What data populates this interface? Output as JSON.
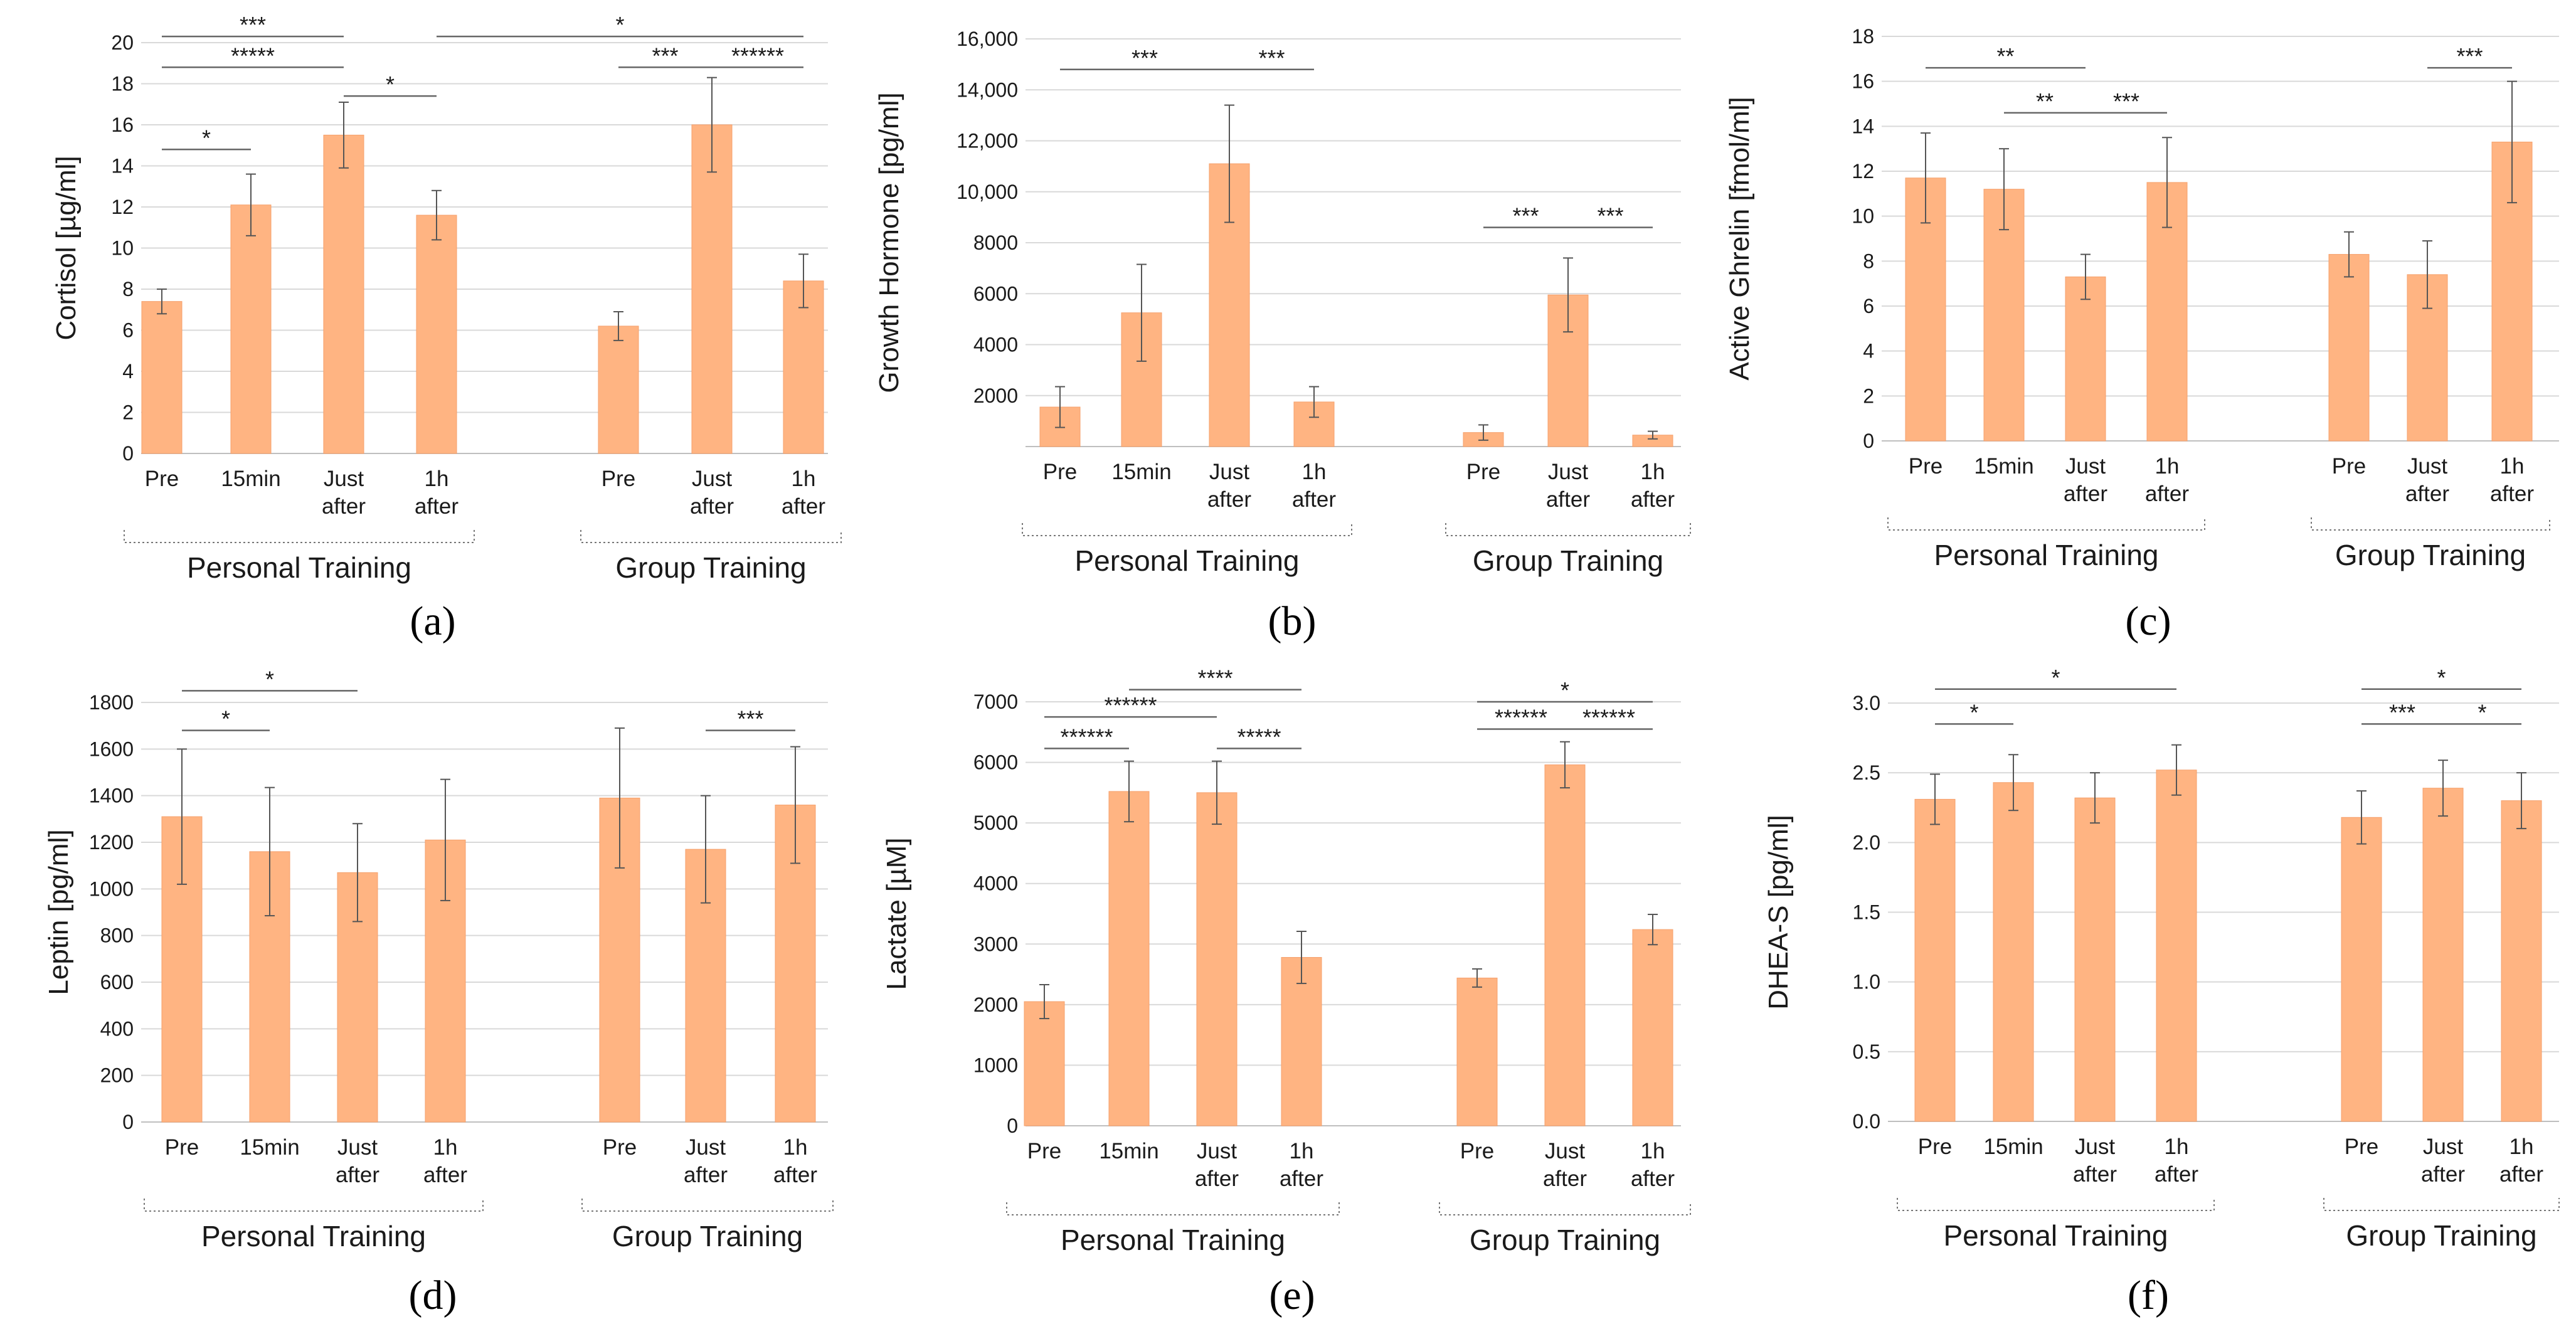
{
  "figure": {
    "bar_color": "#FFB482",
    "bar_edge_color": "#F5A06C",
    "grid_color": "#D9D9D9",
    "text_color": "#1a1a1a"
  },
  "chart_data": [
    {
      "type": "bar",
      "panel_label": "(a)",
      "ylabel": "Cortisol [µg/ml]",
      "ylim": [
        0,
        20
      ],
      "yticks": [
        "0",
        "2",
        "4",
        "6",
        "8",
        "10",
        "12",
        "14",
        "16",
        "18",
        "20"
      ],
      "groups": [
        {
          "name": "Personal Training",
          "categories": [
            "Pre",
            "15min",
            "Just after",
            "1h after"
          ],
          "values": [
            7.4,
            12.1,
            15.5,
            11.6
          ],
          "errors": [
            0.6,
            1.5,
            1.6,
            1.2
          ]
        },
        {
          "name": "Group Training",
          "categories": [
            "Pre",
            "Just after",
            "1h after"
          ],
          "values": [
            6.2,
            16.0,
            8.4
          ],
          "errors": [
            0.7,
            2.3,
            1.3
          ]
        }
      ],
      "brackets": [
        {
          "g1": 0,
          "i1": 0,
          "g2": 0,
          "i2": 2,
          "y": 20.3,
          "label": "***"
        },
        {
          "g1": 0,
          "i1": 3,
          "g2": 1,
          "i2": 2,
          "y": 20.3,
          "label": "*"
        },
        {
          "g1": 0,
          "i1": 0,
          "g2": 0,
          "i2": 2,
          "y": 18.8,
          "label": "*****"
        },
        {
          "g1": 0,
          "i1": 0,
          "g2": 0,
          "i2": 1,
          "y": 14.8,
          "label": "*"
        },
        {
          "g1": 0,
          "i1": 2,
          "g2": 0,
          "i2": 3,
          "y": 17.4,
          "label": "*"
        },
        {
          "g1": 1,
          "i1": 0,
          "g2": 1,
          "i2": 1,
          "y": 18.8,
          "label": "***"
        },
        {
          "g1": 1,
          "i1": 1,
          "g2": 1,
          "i2": 2,
          "y": 18.8,
          "label": "******"
        }
      ]
    },
    {
      "type": "bar",
      "panel_label": "(b)",
      "ylabel": "Growth Hormone [pg/ml]",
      "ylim": [
        0,
        16000
      ],
      "yticks": [
        "",
        "2000",
        "4000",
        "6000",
        "8000",
        "10,000",
        "12,000",
        "14,000",
        "16,000"
      ],
      "groups": [
        {
          "name": "Personal Training",
          "categories": [
            "Pre",
            "15min",
            "Just after",
            "1h after"
          ],
          "values": [
            1550,
            5250,
            11100,
            1750
          ],
          "errors": [
            800,
            1900,
            2300,
            600
          ]
        },
        {
          "name": "Group Training",
          "categories": [
            "Pre",
            "Just after",
            "1h after"
          ],
          "values": [
            550,
            5950,
            450
          ],
          "errors": [
            300,
            1450,
            150
          ]
        }
      ],
      "brackets": [
        {
          "g1": 0,
          "i1": 0,
          "g2": 0,
          "i2": 2,
          "y": 14800,
          "label": "***"
        },
        {
          "g1": 0,
          "i1": 2,
          "g2": 0,
          "i2": 3,
          "y": 14800,
          "label": "***"
        },
        {
          "g1": 1,
          "i1": 0,
          "g2": 1,
          "i2": 1,
          "y": 8600,
          "label": "***"
        },
        {
          "g1": 1,
          "i1": 1,
          "g2": 1,
          "i2": 2,
          "y": 8600,
          "label": "***"
        }
      ]
    },
    {
      "type": "bar",
      "panel_label": "(c)",
      "ylabel": "Active Ghrelin [fmol/ml]",
      "ylim": [
        0,
        18
      ],
      "yticks": [
        "0",
        "2",
        "4",
        "6",
        "8",
        "10",
        "12",
        "14",
        "16",
        "18"
      ],
      "groups": [
        {
          "name": "Personal Training",
          "categories": [
            "Pre",
            "15min",
            "Just after",
            "1h after"
          ],
          "values": [
            11.7,
            11.2,
            7.3,
            11.5
          ],
          "errors": [
            2.0,
            1.8,
            1.0,
            2.0
          ]
        },
        {
          "name": "Group Training",
          "categories": [
            "Pre",
            "Just after",
            "1h after"
          ],
          "values": [
            8.3,
            7.4,
            13.3
          ],
          "errors": [
            1.0,
            1.5,
            2.7
          ]
        }
      ],
      "brackets": [
        {
          "g1": 0,
          "i1": 0,
          "g2": 0,
          "i2": 2,
          "y": 16.6,
          "label": "**"
        },
        {
          "g1": 0,
          "i1": 1,
          "g2": 0,
          "i2": 2,
          "y": 14.6,
          "label": "**"
        },
        {
          "g1": 0,
          "i1": 2,
          "g2": 0,
          "i2": 3,
          "y": 14.6,
          "label": "***"
        },
        {
          "g1": 1,
          "i1": 1,
          "g2": 1,
          "i2": 2,
          "y": 16.6,
          "label": "***"
        }
      ]
    },
    {
      "type": "bar",
      "panel_label": "(d)",
      "ylabel": "Leptin [pg/ml]",
      "ylim": [
        0,
        1800
      ],
      "yticks": [
        "0",
        "200",
        "400",
        "600",
        "800",
        "1000",
        "1200",
        "1400",
        "1600",
        "1800"
      ],
      "groups": [
        {
          "name": "Personal Training",
          "categories": [
            "Pre",
            "15min",
            "Just after",
            "1h after"
          ],
          "values": [
            1310,
            1160,
            1070,
            1210
          ],
          "errors": [
            290,
            275,
            210,
            260
          ]
        },
        {
          "name": "Group Training",
          "categories": [
            "Pre",
            "Just after",
            "1h after"
          ],
          "values": [
            1390,
            1170,
            1360
          ],
          "errors": [
            300,
            230,
            250
          ]
        }
      ],
      "brackets": [
        {
          "g1": 0,
          "i1": 0,
          "g2": 0,
          "i2": 2,
          "y": 1850,
          "label": "*"
        },
        {
          "g1": 0,
          "i1": 0,
          "g2": 0,
          "i2": 1,
          "y": 1680,
          "label": "*"
        },
        {
          "g1": 1,
          "i1": 1,
          "g2": 1,
          "i2": 2,
          "y": 1680,
          "label": "***"
        }
      ]
    },
    {
      "type": "bar",
      "panel_label": "(e)",
      "ylabel": "Lactate [µM]",
      "ylim": [
        0,
        7000
      ],
      "yticks": [
        "0",
        "1000",
        "2000",
        "3000",
        "4000",
        "5000",
        "6000",
        "7000"
      ],
      "groups": [
        {
          "name": "Personal Training",
          "categories": [
            "Pre",
            "15min",
            "Just after",
            "1h after"
          ],
          "values": [
            2050,
            5520,
            5500,
            2780
          ],
          "errors": [
            280,
            500,
            520,
            430
          ]
        },
        {
          "name": "Group Training",
          "categories": [
            "Pre",
            "Just after",
            "1h after"
          ],
          "values": [
            2440,
            5960,
            3240
          ],
          "errors": [
            150,
            380,
            250
          ]
        }
      ],
      "brackets": [
        {
          "g1": 0,
          "i1": 1,
          "g2": 0,
          "i2": 3,
          "y": 7200,
          "label": "****"
        },
        {
          "g1": 0,
          "i1": 0,
          "g2": 0,
          "i2": 2,
          "y": 6750,
          "label": "******"
        },
        {
          "g1": 0,
          "i1": 0,
          "g2": 0,
          "i2": 1,
          "y": 6230,
          "label": "******"
        },
        {
          "g1": 0,
          "i1": 2,
          "g2": 0,
          "i2": 3,
          "y": 6230,
          "label": "*****"
        },
        {
          "g1": 1,
          "i1": 0,
          "g2": 1,
          "i2": 2,
          "y": 7000,
          "label": "*"
        },
        {
          "g1": 1,
          "i1": 0,
          "g2": 1,
          "i2": 1,
          "y": 6550,
          "label": "******"
        },
        {
          "g1": 1,
          "i1": 1,
          "g2": 1,
          "i2": 2,
          "y": 6550,
          "label": "******"
        }
      ]
    },
    {
      "type": "bar",
      "panel_label": "(f)",
      "ylabel": "DHEA-S [pg/ml]",
      "ylim": [
        0,
        3.0
      ],
      "yticks": [
        "0.0",
        "0.5",
        "1.0",
        "1.5",
        "2.0",
        "2.5",
        "3.0"
      ],
      "groups": [
        {
          "name": "Personal Training",
          "categories": [
            "Pre",
            "15min",
            "Just after",
            "1h after"
          ],
          "values": [
            2.31,
            2.43,
            2.32,
            2.52
          ],
          "errors": [
            0.18,
            0.2,
            0.18,
            0.18
          ]
        },
        {
          "name": "Group Training",
          "categories": [
            "Pre",
            "Just after",
            "1h after"
          ],
          "values": [
            2.18,
            2.39,
            2.3
          ],
          "errors": [
            0.19,
            0.2,
            0.2
          ]
        }
      ],
      "brackets": [
        {
          "g1": 0,
          "i1": 0,
          "g2": 0,
          "i2": 3,
          "y": 3.1,
          "label": "*"
        },
        {
          "g1": 0,
          "i1": 0,
          "g2": 0,
          "i2": 1,
          "y": 2.85,
          "label": "*"
        },
        {
          "g1": 1,
          "i1": 0,
          "g2": 1,
          "i2": 2,
          "y": 3.1,
          "label": "*"
        },
        {
          "g1": 1,
          "i1": 0,
          "g2": 1,
          "i2": 1,
          "y": 2.85,
          "label": "***"
        },
        {
          "g1": 1,
          "i1": 1,
          "g2": 1,
          "i2": 2,
          "y": 2.85,
          "label": "*"
        }
      ]
    }
  ]
}
